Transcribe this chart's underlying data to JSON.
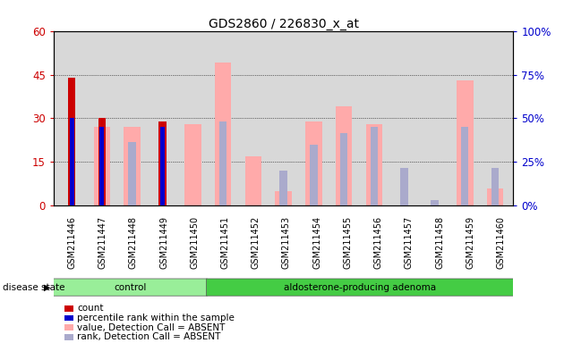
{
  "title": "GDS2860 / 226830_x_at",
  "samples": [
    "GSM211446",
    "GSM211447",
    "GSM211448",
    "GSM211449",
    "GSM211450",
    "GSM211451",
    "GSM211452",
    "GSM211453",
    "GSM211454",
    "GSM211455",
    "GSM211456",
    "GSM211457",
    "GSM211458",
    "GSM211459",
    "GSM211460"
  ],
  "count_values": [
    44,
    30,
    0,
    29,
    0,
    0,
    0,
    0,
    0,
    0,
    0,
    0,
    0,
    0,
    0
  ],
  "percentile_rank_values": [
    30,
    27,
    0,
    27,
    0,
    0,
    0,
    0,
    0,
    0,
    0,
    0,
    0,
    0,
    0
  ],
  "value_absent": [
    0,
    27,
    27,
    0,
    28,
    49,
    17,
    5,
    29,
    34,
    28,
    0,
    0,
    43,
    6
  ],
  "rank_absent": [
    0,
    0,
    22,
    0,
    0,
    29,
    0,
    12,
    21,
    25,
    27,
    13,
    2,
    27,
    13
  ],
  "ylim_left": [
    0,
    60
  ],
  "ylim_right": [
    0,
    100
  ],
  "yticks_left": [
    0,
    15,
    30,
    45,
    60
  ],
  "ytick_labels_left": [
    "0",
    "15",
    "30",
    "45",
    "60"
  ],
  "yticks_right": [
    0,
    25,
    50,
    75,
    100
  ],
  "ytick_labels_right": [
    "0%",
    "25%",
    "50%",
    "75%",
    "100%"
  ],
  "color_count": "#cc0000",
  "color_percentile": "#0000cc",
  "color_value_absent": "#ffaaaa",
  "color_rank_absent": "#aaaacc",
  "group_label_control": "control",
  "group_label_adenoma": "aldosterone-producing adenoma",
  "disease_state_label": "disease state",
  "legend_items": [
    "count",
    "percentile rank within the sample",
    "value, Detection Call = ABSENT",
    "rank, Detection Call = ABSENT"
  ],
  "legend_colors": [
    "#cc0000",
    "#0000cc",
    "#ffaaaa",
    "#aaaacc"
  ],
  "plot_bg": "#d8d8d8",
  "fig_bg": "#ffffff",
  "control_indices": [
    0,
    1,
    2,
    3,
    4
  ],
  "adenoma_indices": [
    5,
    6,
    7,
    8,
    9,
    10,
    11,
    12,
    13,
    14
  ]
}
